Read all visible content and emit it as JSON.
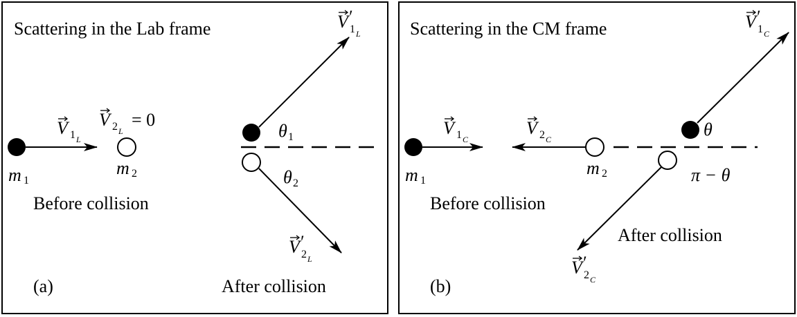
{
  "panels": [
    {
      "title": "Scattering in the Lab frame",
      "panel_label": "(a)",
      "before_caption": "Before collision",
      "after_caption": "After collision",
      "labels": {
        "m1": "m",
        "m1_sub": "1",
        "m2": "m",
        "m2_sub": "2",
        "v1_before": "V",
        "v1_before_sub": "1",
        "v1_before_subsub": "L",
        "v2_before": "V",
        "v2_before_sub": "2",
        "v2_before_subsub": "L",
        "v2_before_eq": "= 0",
        "v1_after": "V",
        "v1_after_prime": "′",
        "v1_after_sub": "1",
        "v1_after_subsub": "L",
        "v2_after": "V",
        "v2_after_prime": "′",
        "v2_after_sub": "2",
        "v2_after_subsub": "L",
        "theta1": "θ",
        "theta1_sub": "1",
        "theta2": "θ",
        "theta2_sub": "2"
      }
    },
    {
      "title": "Scattering in the CM frame",
      "panel_label": "(b)",
      "before_caption": "Before collision",
      "after_caption": "After collision",
      "labels": {
        "m1": "m",
        "m1_sub": "1",
        "m2": "m",
        "m2_sub": "2",
        "v1_before": "V",
        "v1_before_sub": "1",
        "v1_before_subsub": "C",
        "v2_before": "V",
        "v2_before_sub": "2",
        "v2_before_subsub": "C",
        "v1_after": "V",
        "v1_after_prime": "′",
        "v1_after_sub": "1",
        "v1_after_subsub": "C",
        "v2_after": "V",
        "v2_after_prime": "′",
        "v2_after_sub": "2",
        "v2_after_subsub": "C",
        "theta": "θ",
        "pi_minus_theta": "π − θ"
      }
    }
  ],
  "colors": {
    "ink": "#000000",
    "background": "#ffffff"
  }
}
